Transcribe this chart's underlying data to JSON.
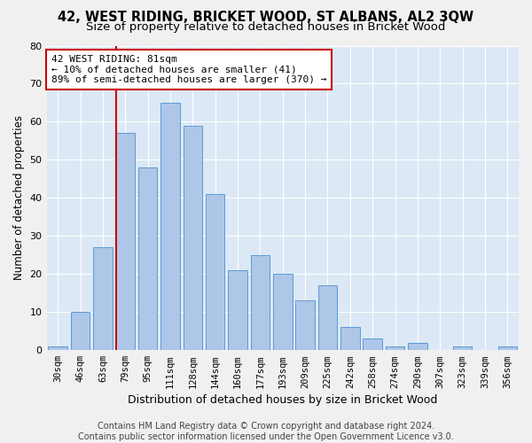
{
  "title": "42, WEST RIDING, BRICKET WOOD, ST ALBANS, AL2 3QW",
  "subtitle": "Size of property relative to detached houses in Bricket Wood",
  "xlabel": "Distribution of detached houses by size in Bricket Wood",
  "ylabel": "Number of detached properties",
  "categories": [
    "30sqm",
    "46sqm",
    "63sqm",
    "79sqm",
    "95sqm",
    "111sqm",
    "128sqm",
    "144sqm",
    "160sqm",
    "177sqm",
    "193sqm",
    "209sqm",
    "225sqm",
    "242sqm",
    "258sqm",
    "274sqm",
    "290sqm",
    "307sqm",
    "323sqm",
    "339sqm",
    "356sqm"
  ],
  "values": [
    1,
    10,
    27,
    57,
    48,
    65,
    59,
    41,
    21,
    25,
    20,
    13,
    17,
    6,
    3,
    1,
    2,
    0,
    1,
    0,
    1
  ],
  "bar_color": "#aec6e8",
  "bar_edge_color": "#5b9bd5",
  "background_color": "#dce8f5",
  "grid_color": "#ffffff",
  "vline_color": "#cc0000",
  "vline_x_index": 3,
  "annotation_text": "42 WEST RIDING: 81sqm\n← 10% of detached houses are smaller (41)\n89% of semi-detached houses are larger (370) →",
  "annotation_box_facecolor": "#ffffff",
  "annotation_box_edgecolor": "#cc0000",
  "ylim": [
    0,
    80
  ],
  "yticks": [
    0,
    10,
    20,
    30,
    40,
    50,
    60,
    70,
    80
  ],
  "footer": "Contains HM Land Registry data © Crown copyright and database right 2024.\nContains public sector information licensed under the Open Government Licence v3.0.",
  "title_fontsize": 10.5,
  "subtitle_fontsize": 9.5,
  "xlabel_fontsize": 9,
  "ylabel_fontsize": 8.5,
  "tick_fontsize": 7.5,
  "annotation_fontsize": 8,
  "footer_fontsize": 7
}
